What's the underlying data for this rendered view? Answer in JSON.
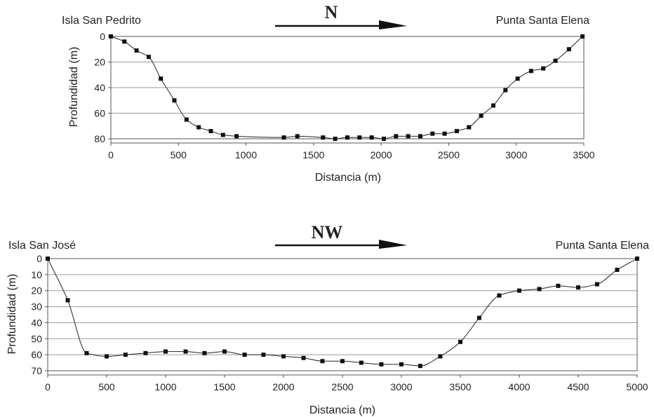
{
  "chart_data": [
    {
      "type": "line",
      "direction_label": "N",
      "left_label": "Isla San Pedrito",
      "right_label": "Punta Santa Elena",
      "xlabel": "Distancia (m)",
      "ylabel": "Profundidad (m)",
      "xlim": [
        0,
        3500
      ],
      "ylim": [
        0,
        80
      ],
      "y_inverted": true,
      "xticks": [
        0,
        500,
        1000,
        1500,
        2000,
        2500,
        3000,
        3500
      ],
      "yticks": [
        0,
        20,
        40,
        60,
        80
      ],
      "grid": true,
      "x": [
        0,
        100,
        190,
        280,
        370,
        470,
        560,
        650,
        740,
        830,
        930,
        1280,
        1380,
        1570,
        1660,
        1750,
        1840,
        1930,
        2020,
        2110,
        2200,
        2290,
        2380,
        2470,
        2560,
        2650,
        2740,
        2830,
        2920,
        3010,
        3110,
        3200,
        3290,
        3390,
        3490
      ],
      "y": [
        0,
        4,
        11,
        16,
        33,
        50,
        65,
        71,
        74,
        77,
        78,
        79,
        78,
        79,
        80,
        79,
        79,
        79,
        80,
        78,
        78,
        78,
        76,
        76,
        74,
        71,
        62,
        54,
        42,
        33,
        27,
        25,
        19,
        10,
        0
      ]
    },
    {
      "type": "line",
      "direction_label": "NW",
      "left_label": "Isla San José",
      "right_label": "Punta Santa Elena",
      "xlabel": "Distancia (m)",
      "ylabel": "Profundidad (m)",
      "xlim": [
        0,
        5000
      ],
      "ylim": [
        0,
        70
      ],
      "y_inverted": true,
      "xticks": [
        0,
        500,
        1000,
        1500,
        2000,
        2500,
        3000,
        3500,
        4000,
        4500,
        5000
      ],
      "yticks": [
        0,
        10,
        20,
        30,
        40,
        50,
        60,
        70
      ],
      "grid": true,
      "x": [
        0,
        170,
        330,
        500,
        660,
        830,
        1000,
        1170,
        1330,
        1500,
        1670,
        1830,
        2000,
        2170,
        2330,
        2500,
        2660,
        2830,
        3000,
        3160,
        3330,
        3500,
        3660,
        3830,
        4000,
        4170,
        4330,
        4500,
        4660,
        4830,
        5000
      ],
      "y": [
        0,
        26,
        59,
        61,
        60,
        59,
        58,
        58,
        59,
        58,
        60,
        60,
        61,
        62,
        64,
        64,
        65,
        66,
        66,
        67,
        61,
        52,
        37,
        23,
        20,
        19,
        17,
        18,
        16,
        7,
        0
      ]
    }
  ]
}
